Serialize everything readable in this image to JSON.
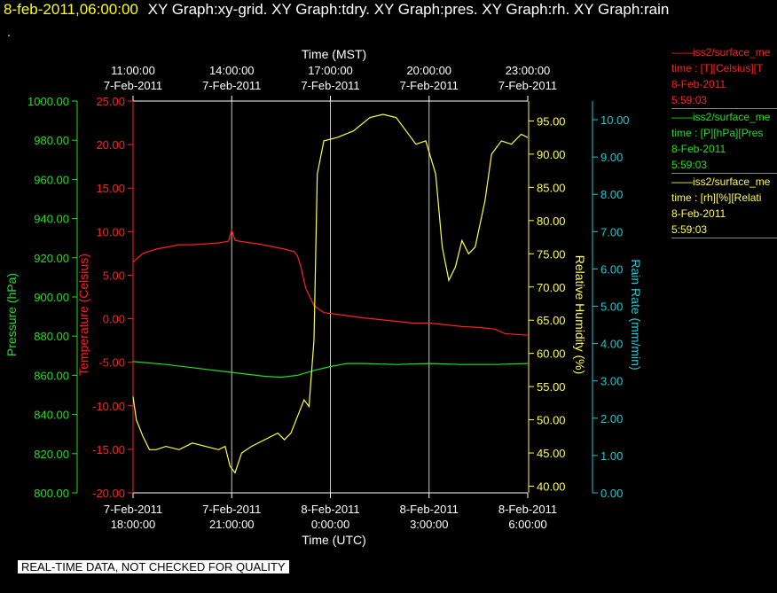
{
  "header": {
    "datetime": "8-feb-2011,06:00:00",
    "tabs": "XY Graph:xy-grid.  XY Graph:tdry.  XY Graph:pres.  XY Graph:rh.  XY Graph:rain"
  },
  "stray_mark": ".",
  "notice": "REAL-TIME DATA, NOT CHECKED FOR QUALITY",
  "legend": [
    {
      "name": "iss2/surface_me",
      "units": "time : [T][Celsius][T",
      "date": "8-Feb-2011",
      "time": "5:59:03",
      "color": "#ff2020"
    },
    {
      "name": "iss2/surface_me",
      "units": "time : [P][hPa][Pres",
      "date": "8-Feb-2011",
      "time": "5:59:03",
      "color": "#20e020"
    },
    {
      "name": "iss2/surface_me",
      "units": "time : [rh][%][Relati",
      "date": "8-Feb-2011",
      "time": "5:59:03",
      "color": "#ffff40"
    }
  ],
  "chart_data": {
    "type": "line",
    "x_axis_bottom": {
      "label": "Time (UTC)",
      "ticks": [
        {
          "x": 18,
          "date": "7-Feb-2011",
          "time": "18:00:00"
        },
        {
          "x": 21,
          "date": "7-Feb-2011",
          "time": "21:00:00"
        },
        {
          "x": 24,
          "date": "8-Feb-2011",
          "time": "0:00:00"
        },
        {
          "x": 27,
          "date": "8-Feb-2011",
          "time": "3:00:00"
        },
        {
          "x": 30,
          "date": "8-Feb-2011",
          "time": "6:00:00"
        }
      ]
    },
    "x_axis_top": {
      "label": "Time (MST)",
      "ticks": [
        {
          "x": 18,
          "date": "7-Feb-2011",
          "time": "11:00:00"
        },
        {
          "x": 21,
          "date": "7-Feb-2011",
          "time": "14:00:00"
        },
        {
          "x": 24,
          "date": "7-Feb-2011",
          "time": "17:00:00"
        },
        {
          "x": 27,
          "date": "7-Feb-2011",
          "time": "20:00:00"
        },
        {
          "x": 30,
          "date": "7-Feb-2011",
          "time": "23:00:00"
        }
      ]
    },
    "xlim": [
      18,
      30
    ],
    "axes": {
      "pressure": {
        "label": "Pressure (hPa)",
        "color": "#20e020",
        "lim": [
          800,
          1000
        ],
        "ticks": [
          "800.00",
          "820.00",
          "840.00",
          "860.00",
          "880.00",
          "900.00",
          "920.00",
          "940.00",
          "960.00",
          "980.00",
          "1000.00"
        ]
      },
      "temperature": {
        "label": "Temperature (Celsius)",
        "color": "#ff2020",
        "lim": [
          -20,
          25
        ],
        "ticks": [
          "-20.00",
          "-15.00",
          "-10.00",
          "-5.00",
          "0.00",
          "5.00",
          "10.00",
          "15.00",
          "20.00",
          "25.00"
        ]
      },
      "humidity": {
        "label": "Relative Humidity (%)",
        "color": "#ffff40",
        "lim": [
          39,
          98
        ],
        "ticks": [
          "40.00",
          "45.00",
          "50.00",
          "55.00",
          "60.00",
          "65.00",
          "70.00",
          "75.00",
          "80.00",
          "85.00",
          "90.00",
          "95.00"
        ]
      },
      "rain": {
        "label": "Rain Rate (mm/min)",
        "color": "#20c8d0",
        "lim": [
          0,
          10.5
        ],
        "ticks": [
          "0.00",
          "1.00",
          "2.00",
          "3.00",
          "4.00",
          "5.00",
          "6.00",
          "7.00",
          "8.00",
          "9.00",
          "10.00"
        ]
      }
    },
    "grid_x": [
      21,
      24,
      27
    ],
    "series": [
      {
        "axis": "temperature",
        "color": "#ff2020",
        "x": [
          18.0,
          18.3,
          18.7,
          19.0,
          19.4,
          19.8,
          20.2,
          20.6,
          20.9,
          21.0,
          21.1,
          21.4,
          21.8,
          22.2,
          22.6,
          22.9,
          23.0,
          23.1,
          23.25,
          23.5,
          23.8,
          24.2,
          24.6,
          25.0,
          25.5,
          26.0,
          26.5,
          27.0,
          27.5,
          28.0,
          28.5,
          29.0,
          29.3,
          29.6,
          30.0
        ],
        "y": [
          6.5,
          7.5,
          8.0,
          8.2,
          8.5,
          8.5,
          8.6,
          8.7,
          8.9,
          10.2,
          9.0,
          8.8,
          8.6,
          8.3,
          8.0,
          7.7,
          7.2,
          6.0,
          3.5,
          1.5,
          0.7,
          0.5,
          0.3,
          0.1,
          -0.1,
          -0.3,
          -0.5,
          -0.5,
          -0.7,
          -0.9,
          -1.0,
          -1.2,
          -1.7,
          -1.8,
          -1.9
        ]
      },
      {
        "axis": "pressure",
        "color": "#20e020",
        "x": [
          18.0,
          19.0,
          20.0,
          21.0,
          22.0,
          22.5,
          23.0,
          23.5,
          24.0,
          24.5,
          25.0,
          26.0,
          27.0,
          28.0,
          29.0,
          30.0
        ],
        "y": [
          867.0,
          865.5,
          863.5,
          861.5,
          859.5,
          859.0,
          860.0,
          862.5,
          864.5,
          866.0,
          866.0,
          865.5,
          866.0,
          865.5,
          865.5,
          866.0
        ]
      },
      {
        "axis": "humidity",
        "color": "#ffff40",
        "x": [
          18.0,
          18.1,
          18.3,
          18.5,
          18.7,
          19.0,
          19.4,
          19.8,
          20.2,
          20.6,
          20.8,
          20.95,
          21.1,
          21.3,
          21.6,
          22.0,
          22.4,
          22.6,
          22.8,
          23.0,
          23.2,
          23.35,
          23.5,
          23.6,
          23.8,
          24.2,
          24.7,
          25.2,
          25.6,
          26.0,
          26.3,
          26.6,
          26.9,
          27.2,
          27.4,
          27.6,
          27.8,
          28.0,
          28.2,
          28.4,
          28.7,
          28.9,
          29.2,
          29.5,
          29.8,
          30.0
        ],
        "y": [
          53.5,
          50.0,
          47.5,
          45.5,
          45.5,
          46.0,
          45.5,
          46.5,
          46.0,
          45.5,
          46.0,
          43.0,
          42.0,
          45.0,
          46.0,
          47.0,
          48.0,
          47.0,
          48.0,
          50.5,
          53.0,
          52.0,
          62.0,
          87.0,
          92.0,
          92.5,
          93.5,
          95.5,
          96.0,
          95.5,
          93.5,
          91.5,
          92.0,
          87.0,
          76.0,
          71.0,
          73.0,
          77.0,
          75.0,
          76.0,
          83.0,
          90.0,
          92.0,
          91.5,
          93.0,
          92.5
        ]
      }
    ],
    "rain_values": []
  }
}
